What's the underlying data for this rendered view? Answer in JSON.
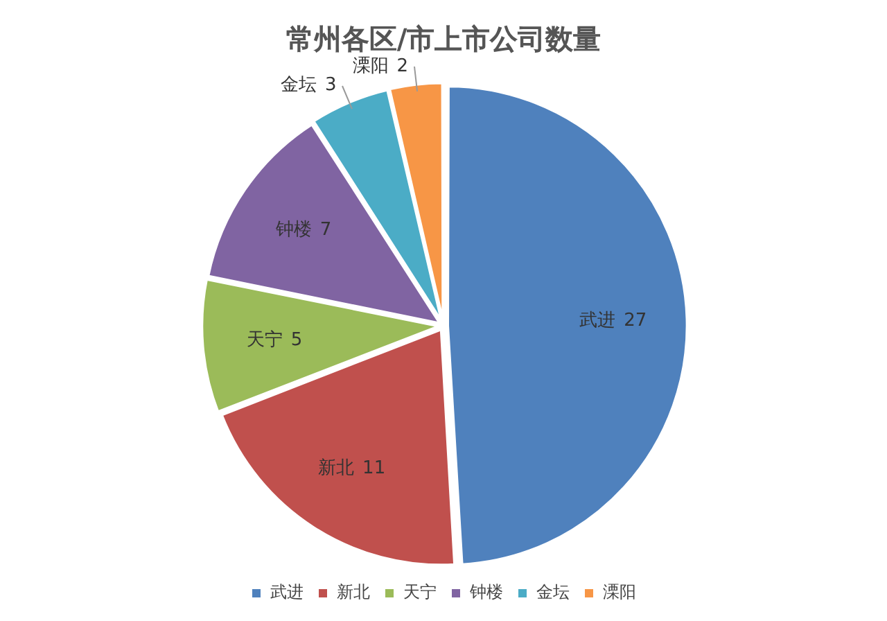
{
  "chart_data": {
    "type": "pie",
    "title": "常州各区/市上市公司数量",
    "categories": [
      "武进",
      "新北",
      "天宁",
      "钟楼",
      "金坛",
      "溧阳"
    ],
    "values": [
      27,
      11,
      5,
      7,
      3,
      2
    ],
    "colors": [
      "#4f81bd",
      "#c0504d",
      "#9bbb59",
      "#8064a2",
      "#4bacc6",
      "#f79646"
    ],
    "data_labels": true,
    "legend": "bottom"
  }
}
